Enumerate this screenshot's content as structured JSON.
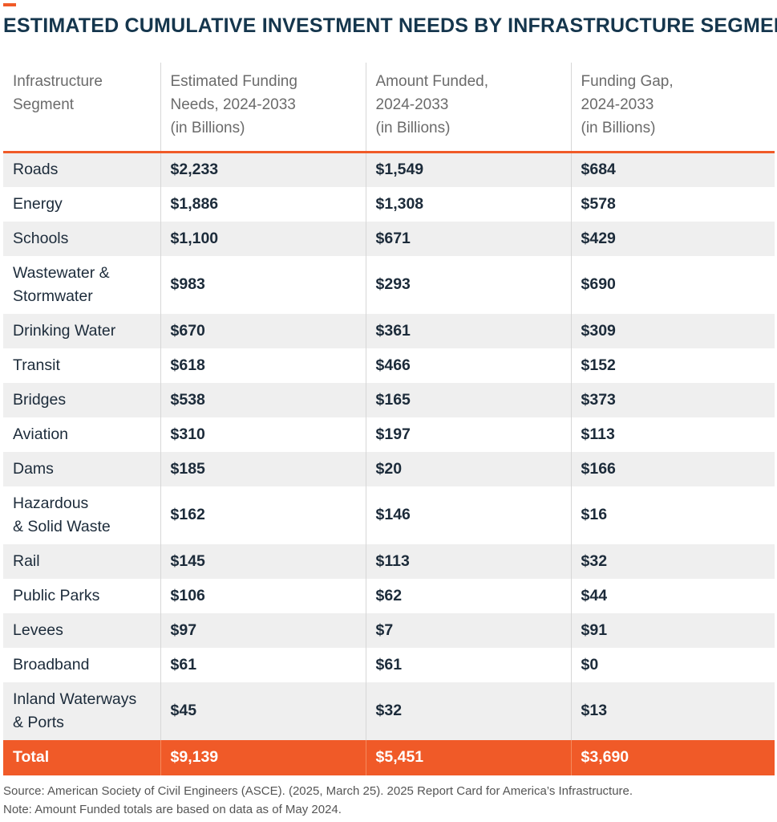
{
  "title": "ESTIMATED CUMULATIVE INVESTMENT NEEDS BY INFRASTRUCTURE SEGMENT",
  "colors": {
    "accent": "#f05a28",
    "title": "#15364d",
    "stripe": "#efefef"
  },
  "chart_data": {
    "type": "table",
    "title": "ESTIMATED CUMULATIVE INVESTMENT NEEDS BY INFRASTRUCTURE SEGMENT",
    "columns": [
      "Infrastructure Segment",
      "Estimated Funding Needs, 2024-2033 (in Billions)",
      "Amount Funded, 2024-2033 (in Billions)",
      "Funding Gap, 2024-2033 (in Billions)"
    ],
    "header_lines": [
      [
        "Infrastructure",
        "Segment"
      ],
      [
        "Estimated Funding",
        "Needs, 2024-2033",
        "(in Billions)"
      ],
      [
        "Amount Funded,",
        "2024-2033",
        "(in Billions)"
      ],
      [
        "Funding Gap,",
        "2024-2033",
        "(in Billions)"
      ]
    ],
    "rows": [
      {
        "segment": [
          "Roads"
        ],
        "needs": "$2,233",
        "funded": "$1,549",
        "gap": "$684"
      },
      {
        "segment": [
          "Energy"
        ],
        "needs": "$1,886",
        "funded": "$1,308",
        "gap": "$578"
      },
      {
        "segment": [
          "Schools"
        ],
        "needs": "$1,100",
        "funded": "$671",
        "gap": "$429"
      },
      {
        "segment": [
          "Wastewater &",
          "Stormwater"
        ],
        "needs": "$983",
        "funded": "$293",
        "gap": "$690"
      },
      {
        "segment": [
          "Drinking Water"
        ],
        "needs": "$670",
        "funded": "$361",
        "gap": "$309"
      },
      {
        "segment": [
          "Transit"
        ],
        "needs": "$618",
        "funded": "$466",
        "gap": "$152"
      },
      {
        "segment": [
          "Bridges"
        ],
        "needs": "$538",
        "funded": "$165",
        "gap": "$373"
      },
      {
        "segment": [
          "Aviation"
        ],
        "needs": "$310",
        "funded": "$197",
        "gap": "$113"
      },
      {
        "segment": [
          "Dams"
        ],
        "needs": "$185",
        "funded": "$20",
        "gap": "$166"
      },
      {
        "segment": [
          "Hazardous",
          "& Solid Waste"
        ],
        "needs": "$162",
        "funded": "$146",
        "gap": "$16"
      },
      {
        "segment": [
          "Rail"
        ],
        "needs": "$145",
        "funded": "$113",
        "gap": "$32"
      },
      {
        "segment": [
          "Public Parks"
        ],
        "needs": "$106",
        "funded": "$62",
        "gap": "$44"
      },
      {
        "segment": [
          "Levees"
        ],
        "needs": "$97",
        "funded": "$7",
        "gap": "$91"
      },
      {
        "segment": [
          "Broadband"
        ],
        "needs": "$61",
        "funded": "$61",
        "gap": "$0"
      },
      {
        "segment": [
          "Inland Waterways",
          "& Ports"
        ],
        "needs": "$45",
        "funded": "$32",
        "gap": "$13"
      }
    ],
    "total": {
      "label": "Total",
      "needs": "$9,139",
      "funded": "$5,451",
      "gap": "$3,690"
    }
  },
  "source": "Source: American Society of Civil Engineers (ASCE). (2025, March 25). 2025 Report Card for America’s Infrastructure.",
  "note": "Note: Amount Funded totals are based on data as of May 2024."
}
